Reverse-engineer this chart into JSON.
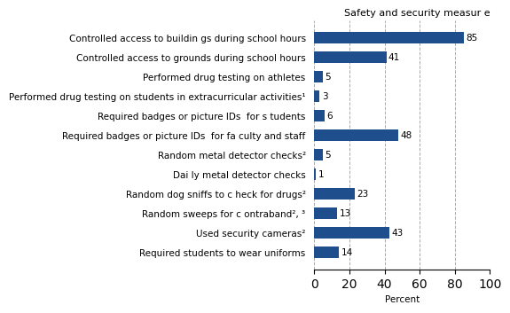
{
  "title": "Safety and security measur e",
  "categories": [
    "Required students to wear uniforms",
    "Used security cameras²",
    "Random sweeps for c ontraband², ³",
    "Random dog sniffs to c heck for drugs²",
    "Dai ly metal detector checks",
    "Random metal detector checks²",
    "Required badges or picture IDs  for fa culty and staff",
    "Required badges or picture IDs  for s tudents",
    "Performed drug testing on students in extracurricular activities¹",
    "Performed drug testing on athletes",
    "Controlled access to grounds during school hours",
    "Controlled access to buildin gs during school hours"
  ],
  "values": [
    14,
    43,
    13,
    23,
    1,
    5,
    48,
    6,
    3,
    5,
    41,
    85
  ],
  "bar_color": "#1F4E8C",
  "background_color": "#ffffff",
  "xlabel": "Percent",
  "xlim": [
    0,
    100
  ],
  "xticks": [
    0,
    20,
    40,
    60,
    80,
    100
  ],
  "grid_color": "#aaaaaa",
  "label_fontsize": 7.5,
  "value_fontsize": 7.5,
  "title_fontsize": 8.0
}
